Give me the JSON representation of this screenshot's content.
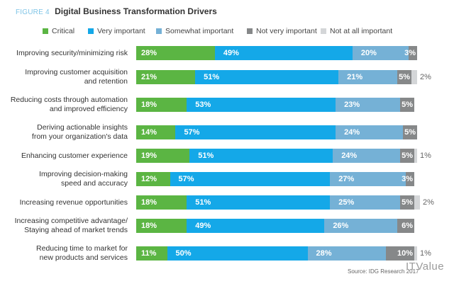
{
  "title": {
    "figure_label": "FIGURE 4",
    "text": "Digital Business Transformation Drivers"
  },
  "chart_data": {
    "type": "bar",
    "orientation": "horizontal",
    "stacked": true,
    "title": "Digital Business Transformation Drivers",
    "xlabel": "",
    "ylabel": "",
    "xlim": [
      0,
      100
    ],
    "grid": false,
    "legend_position": "top",
    "categories": [
      "Improving security/minimizing risk",
      "Improving customer acquisition\nand retention",
      "Reducing costs through automation\nand improved efficiency",
      "Deriving actionable insights\nfrom your organization's data",
      "Enhancing customer experience",
      "Improving decision-making\nspeed and accuracy",
      "Increasing revenue opportunities",
      "Increasing competitive advantage/\nStaying ahead of market trends",
      "Reducing time to market for\nnew products and services"
    ],
    "series": [
      {
        "name": "Critical",
        "color": "#5bb543",
        "values": [
          28,
          21,
          18,
          14,
          19,
          12,
          18,
          18,
          11
        ]
      },
      {
        "name": "Very important",
        "color": "#14a8e8",
        "values": [
          49,
          51,
          53,
          57,
          51,
          57,
          51,
          49,
          50
        ]
      },
      {
        "name": "Somewhat important",
        "color": "#75b1d6",
        "values": [
          20,
          21,
          23,
          24,
          24,
          27,
          25,
          26,
          28
        ]
      },
      {
        "name": "Not very important",
        "color": "#868889",
        "values": [
          3,
          5,
          5,
          5,
          5,
          3,
          5,
          6,
          10
        ]
      },
      {
        "name": "Not at all important",
        "color": "#d4d6d8",
        "values": [
          0,
          2,
          0,
          0,
          1,
          0,
          2,
          0,
          1
        ]
      }
    ],
    "source": "Source: IDG Research 2017"
  },
  "watermark": "ITValue"
}
